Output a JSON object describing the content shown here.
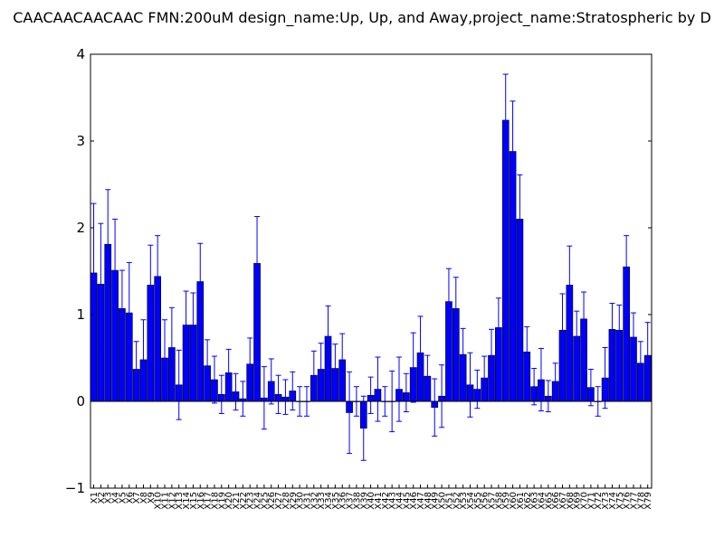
{
  "colors": {
    "bar_fill": "#0000ff",
    "bar_edge": "#000000",
    "error_bar": "#0000ff",
    "zero_line": "#000000",
    "axes": "#000000",
    "background": "#ffffff"
  },
  "chart_data": {
    "type": "bar",
    "title": "CAACAACAACAAC  FMN:200uM  design_name:Up, Up, and Away,project_name:Stratospheric by D",
    "xlabel": "",
    "ylabel": "",
    "ylim": [
      -1,
      4
    ],
    "yticks": [
      -1,
      0,
      1,
      2,
      3,
      4
    ],
    "ytick_labels": [
      "−1",
      "0",
      "1",
      "2",
      "3",
      "4"
    ],
    "grid": false,
    "legend": "none",
    "categories": [
      "X1",
      "X2",
      "X3",
      "X4",
      "X5",
      "X6",
      "X7",
      "X8",
      "X9",
      "X10",
      "X11",
      "X12",
      "X13",
      "X14",
      "X15",
      "X16",
      "X17",
      "X18",
      "X19",
      "X20",
      "X21",
      "X22",
      "X23",
      "X24",
      "X25",
      "X26",
      "X27",
      "X28",
      "X29",
      "X30",
      "X31",
      "X32",
      "X33",
      "X34",
      "X35",
      "X36",
      "X37",
      "X38",
      "X39",
      "X40",
      "X41",
      "X42",
      "X43",
      "X44",
      "X45",
      "X46",
      "X47",
      "X48",
      "X49",
      "X50",
      "X51",
      "X52",
      "X53",
      "X54",
      "X55",
      "X56",
      "X57",
      "X58",
      "X59",
      "X60",
      "X61",
      "X62",
      "X63",
      "X64",
      "X65",
      "X66",
      "X67",
      "X68",
      "X69",
      "X70",
      "X71",
      "X72",
      "X73",
      "X74",
      "X75",
      "X76",
      "X77",
      "X78",
      "X79"
    ],
    "values": [
      1.48,
      1.35,
      1.81,
      1.51,
      1.07,
      1.02,
      0.37,
      0.48,
      1.34,
      1.44,
      0.5,
      0.62,
      0.19,
      0.88,
      0.88,
      1.38,
      0.41,
      0.25,
      0.08,
      0.33,
      0.11,
      0.03,
      0.43,
      1.59,
      0.04,
      0.23,
      0.08,
      0.05,
      0.12,
      0.0,
      0.0,
      0.3,
      0.37,
      0.75,
      0.38,
      0.48,
      -0.13,
      0.0,
      -0.31,
      0.07,
      0.14,
      0.0,
      0.0,
      0.14,
      0.1,
      0.39,
      0.56,
      0.29,
      -0.07,
      0.06,
      1.15,
      1.07,
      0.54,
      0.19,
      0.14,
      0.27,
      0.53,
      0.85,
      3.24,
      2.88,
      2.1,
      0.57,
      0.17,
      0.25,
      0.06,
      0.23,
      0.82,
      1.34,
      0.75,
      0.95,
      0.16,
      0.0,
      0.27,
      0.83,
      0.82,
      1.55,
      0.74,
      0.44,
      0.53
    ],
    "errors": [
      0.8,
      0.7,
      0.63,
      0.59,
      0.44,
      0.58,
      0.32,
      0.46,
      0.46,
      0.47,
      0.44,
      0.46,
      0.4,
      0.39,
      0.37,
      0.44,
      0.3,
      0.27,
      0.22,
      0.27,
      0.21,
      0.2,
      0.3,
      0.54,
      0.36,
      0.26,
      0.22,
      0.2,
      0.22,
      0.17,
      0.17,
      0.28,
      0.3,
      0.35,
      0.28,
      0.3,
      0.47,
      0.17,
      0.37,
      0.21,
      0.37,
      0.17,
      0.35,
      0.37,
      0.22,
      0.4,
      0.42,
      0.24,
      0.33,
      0.36,
      0.38,
      0.36,
      0.3,
      0.37,
      0.22,
      0.25,
      0.3,
      0.34,
      0.53,
      0.58,
      0.51,
      0.29,
      0.21,
      0.36,
      0.18,
      0.21,
      0.42,
      0.45,
      0.29,
      0.31,
      0.21,
      0.17,
      0.35,
      0.3,
      0.29,
      0.36,
      0.28,
      0.25,
      0.38
    ]
  }
}
